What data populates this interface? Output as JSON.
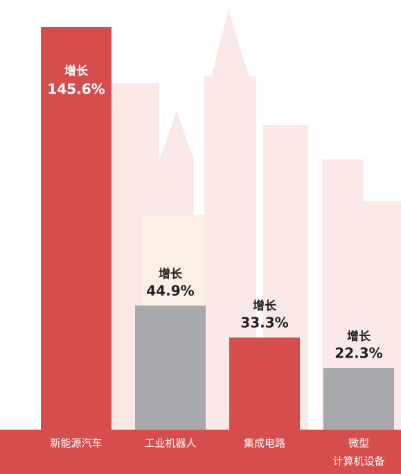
{
  "chart_data": {
    "type": "bar",
    "categories": [
      [
        "新能源汽车"
      ],
      [
        "工业机器人"
      ],
      [
        "集成电路"
      ],
      [
        "微型",
        "计算机设备"
      ]
    ],
    "values": [
      145.6,
      44.9,
      33.3,
      22.3
    ],
    "value_labels": [
      "145.6%",
      "44.9%",
      "33.3%",
      "22.3%"
    ],
    "label_prefix": "增长",
    "colors": [
      "#d64d4d",
      "#a8a9ad",
      "#d64d4d",
      "#a8a9ad"
    ]
  }
}
